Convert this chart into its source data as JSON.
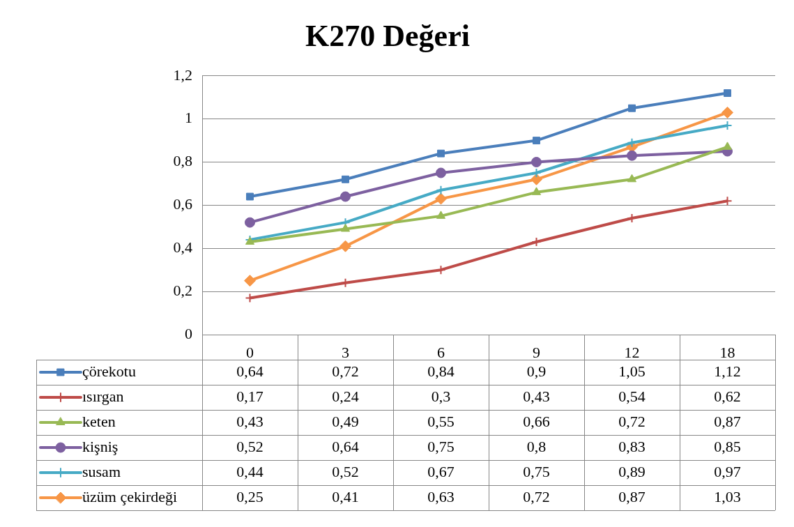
{
  "chart_data": {
    "type": "line",
    "title": "K270 Değeri",
    "categories": [
      "0",
      "3",
      "6",
      "9",
      "12",
      "18"
    ],
    "ylim": [
      0,
      1.2
    ],
    "yticks": [
      0,
      {
        "value": 0.2,
        "label": "0,2"
      },
      {
        "value": 0.4,
        "label": "0,4"
      },
      {
        "value": 0.6,
        "label": "0,6"
      },
      {
        "value": 0.8,
        "label": "0,8"
      },
      1,
      {
        "value": 1.2,
        "label": "1,2"
      }
    ],
    "grid": "y",
    "legend": "bottom",
    "series": [
      {
        "name": "çörekotu",
        "color": "#4a7ebb",
        "marker": "square",
        "values": [
          0.64,
          0.72,
          0.84,
          0.9,
          1.05,
          1.12
        ],
        "value_labels": [
          "0,64",
          "0,72",
          "0,84",
          "0,9",
          "1,05",
          "1,12"
        ]
      },
      {
        "name": "ısırgan",
        "color": "#be4b48",
        "marker": "cross",
        "values": [
          0.17,
          0.24,
          0.3,
          0.43,
          0.54,
          0.62
        ],
        "value_labels": [
          "0,17",
          "0,24",
          "0,3",
          "0,43",
          "0,54",
          "0,62"
        ]
      },
      {
        "name": "keten",
        "color": "#98b954",
        "marker": "triangle",
        "values": [
          0.43,
          0.49,
          0.55,
          0.66,
          0.72,
          0.87
        ],
        "value_labels": [
          "0,43",
          "0,49",
          "0,55",
          "0,66",
          "0,72",
          "0,87"
        ]
      },
      {
        "name": "kişniş",
        "color": "#7d60a0",
        "marker": "circle",
        "values": [
          0.52,
          0.64,
          0.75,
          0.8,
          0.83,
          0.85
        ],
        "value_labels": [
          "0,52",
          "0,64",
          "0,75",
          "0,8",
          "0,83",
          "0,85"
        ]
      },
      {
        "name": "susam",
        "color": "#46aac5",
        "marker": "cross",
        "values": [
          0.44,
          0.52,
          0.67,
          0.75,
          0.89,
          0.97
        ],
        "value_labels": [
          "0,44",
          "0,52",
          "0,67",
          "0,75",
          "0,89",
          "0,97"
        ]
      },
      {
        "name": "üzüm çekirdeği",
        "color": "#f79646",
        "marker": "diamond",
        "values": [
          0.25,
          0.41,
          0.63,
          0.72,
          0.87,
          1.03
        ],
        "value_labels": [
          "0,25",
          "0,41",
          "0,63",
          "0,72",
          "0,87",
          "1,03"
        ]
      }
    ]
  }
}
